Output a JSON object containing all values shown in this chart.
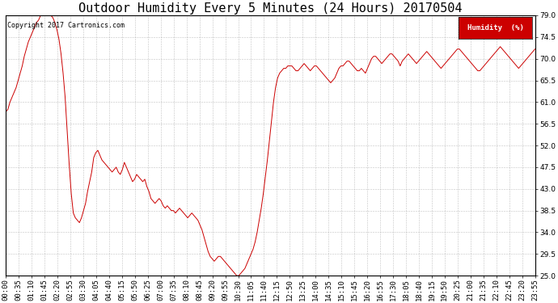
{
  "title": "Outdoor Humidity Every 5 Minutes (24 Hours) 20170504",
  "copyright": "Copyright 2017 Cartronics.com",
  "legend_label": "Humidity  (%)",
  "legend_bg": "#cc0000",
  "legend_text_color": "#ffffff",
  "line_color": "#cc0000",
  "background_color": "#ffffff",
  "grid_color": "#999999",
  "ylim": [
    25.0,
    79.0
  ],
  "yticks": [
    25.0,
    29.5,
    34.0,
    38.5,
    43.0,
    47.5,
    52.0,
    56.5,
    61.0,
    65.5,
    70.0,
    74.5,
    79.0
  ],
  "title_fontsize": 11,
  "axis_fontsize": 6.5,
  "x_tick_labels": [
    "00:00",
    "00:35",
    "01:10",
    "01:45",
    "02:20",
    "02:55",
    "03:30",
    "04:05",
    "04:40",
    "05:15",
    "05:50",
    "06:25",
    "07:00",
    "07:35",
    "08:10",
    "08:45",
    "09:20",
    "09:55",
    "10:30",
    "11:05",
    "11:40",
    "12:15",
    "12:50",
    "13:25",
    "14:00",
    "14:35",
    "15:10",
    "15:45",
    "16:20",
    "16:55",
    "17:30",
    "18:05",
    "18:40",
    "19:15",
    "19:50",
    "20:25",
    "21:00",
    "21:35",
    "22:10",
    "22:45",
    "23:20",
    "23:55"
  ],
  "humidity_values": [
    59.0,
    59.5,
    61.0,
    62.0,
    63.0,
    64.0,
    65.5,
    67.0,
    68.5,
    70.5,
    72.0,
    73.5,
    74.5,
    75.5,
    76.5,
    77.5,
    78.0,
    79.0,
    79.5,
    80.0,
    79.8,
    79.5,
    79.0,
    78.5,
    77.5,
    76.0,
    74.0,
    71.0,
    67.0,
    62.0,
    55.0,
    48.0,
    42.0,
    38.0,
    37.0,
    36.5,
    36.0,
    37.0,
    38.5,
    40.0,
    42.5,
    44.5,
    46.5,
    49.5,
    50.5,
    51.0,
    50.0,
    49.0,
    48.5,
    48.0,
    47.5,
    47.0,
    46.5,
    47.0,
    47.5,
    46.5,
    46.0,
    47.0,
    48.5,
    47.5,
    46.5,
    45.5,
    44.5,
    45.0,
    46.0,
    45.5,
    45.0,
    44.5,
    45.0,
    43.5,
    42.5,
    41.0,
    40.5,
    40.0,
    40.5,
    41.0,
    40.5,
    39.5,
    39.0,
    39.5,
    39.0,
    38.5,
    38.5,
    38.0,
    38.5,
    39.0,
    38.5,
    38.0,
    37.5,
    37.0,
    37.5,
    38.0,
    37.5,
    37.0,
    36.5,
    35.5,
    34.5,
    33.0,
    31.5,
    30.0,
    29.0,
    28.5,
    28.0,
    28.5,
    29.0,
    29.0,
    28.5,
    28.0,
    27.5,
    27.0,
    26.5,
    26.0,
    25.5,
    25.0,
    25.0,
    25.5,
    26.0,
    26.5,
    27.5,
    28.5,
    29.5,
    30.5,
    32.0,
    34.0,
    36.5,
    39.0,
    42.0,
    45.5,
    49.0,
    53.0,
    57.0,
    61.0,
    64.0,
    66.0,
    67.0,
    67.5,
    68.0,
    68.0,
    68.5,
    68.5,
    68.5,
    68.0,
    67.5,
    67.5,
    68.0,
    68.5,
    69.0,
    68.5,
    68.0,
    67.5,
    68.0,
    68.5,
    68.5,
    68.0,
    67.5,
    67.0,
    66.5,
    66.0,
    65.5,
    65.0,
    65.5,
    66.0,
    67.0,
    68.0,
    68.5,
    68.5,
    69.0,
    69.5,
    69.5,
    69.0,
    68.5,
    68.0,
    67.5,
    67.5,
    68.0,
    67.5,
    67.0,
    68.0,
    69.0,
    70.0,
    70.5,
    70.5,
    70.0,
    69.5,
    69.0,
    69.5,
    70.0,
    70.5,
    71.0,
    71.0,
    70.5,
    70.0,
    69.5,
    68.5,
    69.5,
    70.0,
    70.5,
    71.0,
    70.5,
    70.0,
    69.5,
    69.0,
    69.5,
    70.0,
    70.5,
    71.0,
    71.5,
    71.0,
    70.5,
    70.0,
    69.5,
    69.0,
    68.5,
    68.0,
    68.5,
    69.0,
    69.5,
    70.0,
    70.5,
    71.0,
    71.5,
    72.0,
    72.0,
    71.5,
    71.0,
    70.5,
    70.0,
    69.5,
    69.0,
    68.5,
    68.0,
    67.5,
    67.5,
    68.0,
    68.5,
    69.0,
    69.5,
    70.0,
    70.5,
    71.0,
    71.5,
    72.0,
    72.5,
    72.0,
    71.5,
    71.0,
    70.5,
    70.0,
    69.5,
    69.0,
    68.5,
    68.0,
    68.5,
    69.0,
    69.5,
    70.0,
    70.5,
    71.0,
    71.5,
    72.0
  ]
}
